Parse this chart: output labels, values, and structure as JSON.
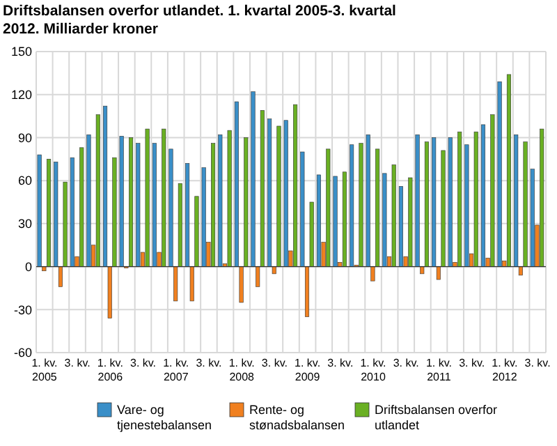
{
  "chart_data": {
    "type": "bar",
    "title": "Driftsbalansen overfor utlandet. 1. kvartal 2005-3. kvartal 2012. Milliarder kroner",
    "categories": [
      "1. kv.\n2005",
      null,
      "3. kv.",
      null,
      "1. kv.\n2006",
      null,
      "3. kv.",
      null,
      "1. kv.\n2007",
      null,
      "3. kv.",
      null,
      "1. kv.\n2008",
      null,
      "3. kv.",
      null,
      "1. kv.\n2009",
      null,
      "3. kv.",
      null,
      "1. kv.\n2010",
      null,
      "3. kv.",
      null,
      "1. kv.\n2011",
      null,
      "3. kv.",
      null,
      "1. kv.\n2012",
      null,
      "3. kv."
    ],
    "series": [
      {
        "name": "Vare- og tjenestebalansen",
        "color": "#3a8fc8",
        "values": [
          78,
          73,
          76,
          92,
          112,
          91,
          86,
          86,
          82,
          72,
          69,
          92,
          115,
          122,
          103,
          102,
          80,
          64,
          63,
          85,
          92,
          65,
          56,
          92,
          90,
          90,
          85,
          99,
          129,
          92,
          68
        ]
      },
      {
        "name": "Rente- og stønadsbalansen",
        "color": "#f08020",
        "values": [
          -3,
          -14,
          7,
          15,
          -36,
          -1,
          10,
          10,
          -24,
          -24,
          17,
          2,
          -25,
          -14,
          -5,
          11,
          -35,
          17,
          3,
          1,
          -10,
          7,
          7,
          -5,
          -9,
          3,
          9,
          6,
          4,
          -6,
          29
        ]
      },
      {
        "name": "Driftsbalansen overfor utlandet",
        "color": "#6ab023",
        "values": [
          75,
          59,
          83,
          106,
          76,
          90,
          96,
          96,
          58,
          49,
          86,
          95,
          90,
          109,
          98,
          113,
          45,
          82,
          66,
          86,
          82,
          71,
          62,
          87,
          81,
          94,
          94,
          106,
          134,
          87,
          96
        ]
      }
    ],
    "ylim": [
      -60,
      150
    ],
    "yticks": [
      -60,
      -30,
      0,
      30,
      60,
      90,
      120,
      150
    ],
    "grid": true,
    "legend": "bottom"
  }
}
